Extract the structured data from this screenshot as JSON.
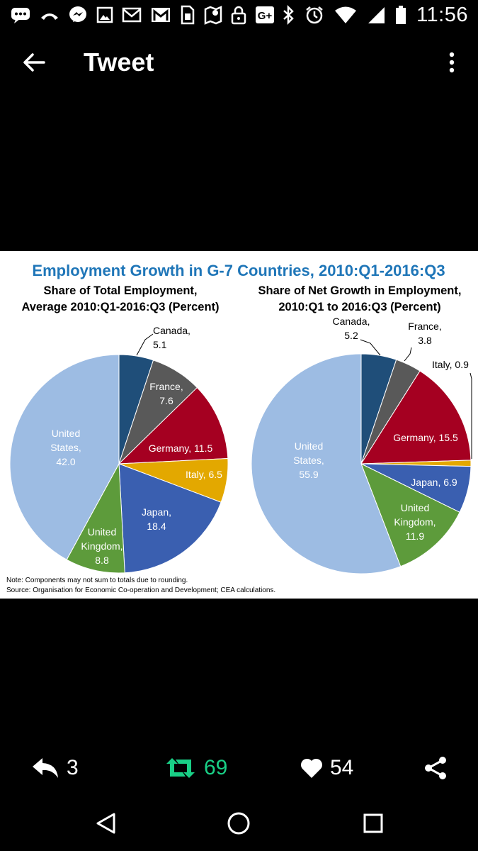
{
  "status_bar": {
    "time": "11:56",
    "left_icons": [
      "message-icon",
      "missed-call-icon",
      "messenger-icon",
      "gallery-icon",
      "mail-icon",
      "gmail-icon",
      "sim-icon",
      "maps-icon",
      "lock-icon",
      "google-plus-icon"
    ],
    "right_icons": [
      "bluetooth-icon",
      "alarm-icon",
      "wifi-icon",
      "signal-icon",
      "battery-icon"
    ]
  },
  "app_bar": {
    "title": "Tweet",
    "back_icon": "arrow-left-icon",
    "menu_icon": "more-vert-icon"
  },
  "chart_data": [
    {
      "type": "pie",
      "figure_title": "Employment Growth in G-7 Countries, 2010:Q1-2016:Q3",
      "title_line1": "Share of Total Employment,",
      "title_line2": "Average 2010:Q1-2016:Q3 (Percent)",
      "slices": [
        {
          "label": "Canada",
          "value": 5.1,
          "color": "#1f4e79",
          "text": "Canada, 5.1"
        },
        {
          "label": "France",
          "value": 7.6,
          "color": "#595959",
          "text": "France, 7.6"
        },
        {
          "label": "Germany",
          "value": 11.5,
          "color": "#a50021",
          "text": "Germany, 11.5"
        },
        {
          "label": "Italy",
          "value": 6.5,
          "color": "#e3a800",
          "text": "Italy, 6.5"
        },
        {
          "label": "Japan",
          "value": 18.4,
          "color": "#3a5fb0",
          "text": "Japan, 18.4"
        },
        {
          "label": "United Kingdom",
          "value": 8.8,
          "color": "#5d9b3b",
          "text": "United Kingdom, 8.8"
        },
        {
          "label": "United States",
          "value": 42.0,
          "color": "#9dbce3",
          "text": "United States, 42.0"
        }
      ]
    },
    {
      "type": "pie",
      "title_line1": "Share of Net Growth in Employment,",
      "title_line2": "2010:Q1 to 2016:Q3 (Percent)",
      "slices": [
        {
          "label": "Canada",
          "value": 5.2,
          "color": "#1f4e79",
          "text": "Canada, 5.2"
        },
        {
          "label": "France",
          "value": 3.8,
          "color": "#595959",
          "text": "France, 3.8"
        },
        {
          "label": "Germany",
          "value": 15.5,
          "color": "#a50021",
          "text": "Germany, 15.5"
        },
        {
          "label": "Italy",
          "value": 0.9,
          "color": "#e3a800",
          "text": "Italy, 0.9"
        },
        {
          "label": "Japan",
          "value": 6.9,
          "color": "#3a5fb0",
          "text": "Japan, 6.9"
        },
        {
          "label": "United Kingdom",
          "value": 11.9,
          "color": "#5d9b3b",
          "text": "United Kingdom, 11.9"
        },
        {
          "label": "United States",
          "value": 55.9,
          "color": "#9dbce3",
          "text": "United States, 55.9"
        }
      ]
    }
  ],
  "chart_notes": {
    "note": "Note: Components may not sum to totals due to rounding.",
    "source": "Source: Organisation for Economic Co-operation and Development; CEA calculations."
  },
  "actions": {
    "reply_count": "3",
    "retweet_count": "69",
    "like_count": "54",
    "retweet_color": "#19cf86"
  },
  "nav_bar": {
    "icons": [
      "back-triangle-icon",
      "home-circle-icon",
      "recents-square-icon"
    ]
  }
}
